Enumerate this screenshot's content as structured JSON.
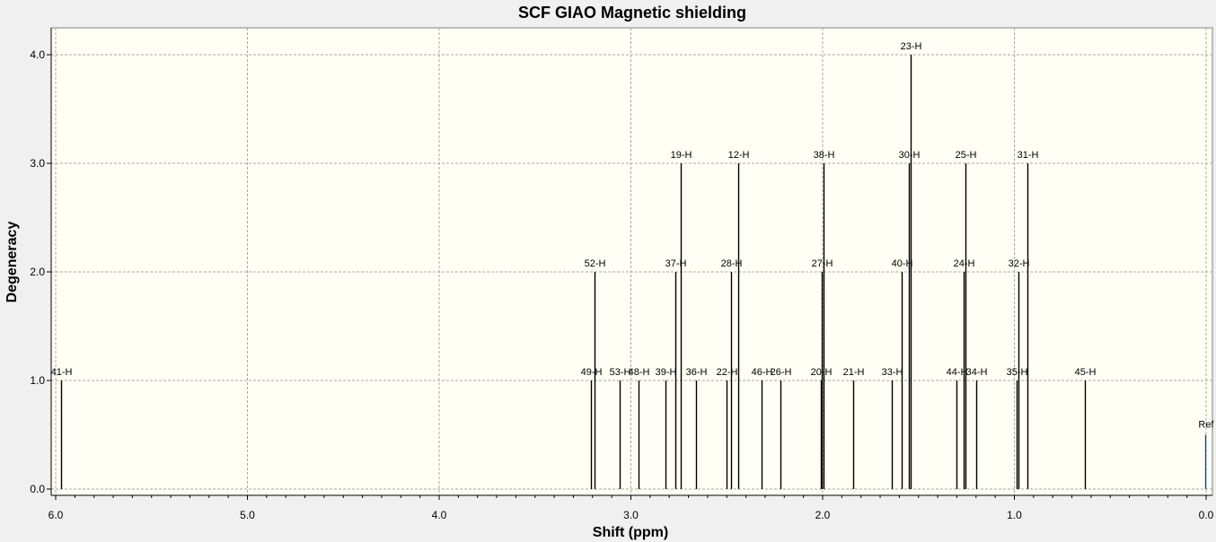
{
  "chart_data": {
    "type": "stick-spectrum",
    "title": "SCF GIAO Magnetic shielding",
    "xlabel": "Shift (ppm)",
    "ylabel": "Degeneracy",
    "xlim": [
      6.0,
      0.0
    ],
    "ylim": [
      0.0,
      4.2
    ],
    "x_reversed": true,
    "x_ticks": [
      "6.0",
      "5.0",
      "4.0",
      "3.0",
      "2.0",
      "1.0",
      "0.0"
    ],
    "y_ticks": [
      "0.0",
      "1.0",
      "2.0",
      "3.0",
      "4.0"
    ],
    "grid": true,
    "plot_background": "#fffff5",
    "peak_color": "#000000",
    "reference_color": "#1f3fa8",
    "peaks": [
      {
        "label": "41-H",
        "x": 5.97,
        "y": 1
      },
      {
        "label": "49-H",
        "x": 3.21,
        "y": 1
      },
      {
        "label": "52-H",
        "x": 3.19,
        "y": 2
      },
      {
        "label": "53-H",
        "x": 3.06,
        "y": 1
      },
      {
        "label": "48-H",
        "x": 2.96,
        "y": 1
      },
      {
        "label": "39-H",
        "x": 2.82,
        "y": 1
      },
      {
        "label": "37-H",
        "x": 2.77,
        "y": 2
      },
      {
        "label": "19-H",
        "x": 2.74,
        "y": 3
      },
      {
        "label": "36-H",
        "x": 2.66,
        "y": 1
      },
      {
        "label": "22-H",
        "x": 2.5,
        "y": 1
      },
      {
        "label": "28-H",
        "x": 2.48,
        "y": 2
      },
      {
        "label": "12-H",
        "x": 2.44,
        "y": 3
      },
      {
        "label": "46-H",
        "x": 2.32,
        "y": 1
      },
      {
        "label": "26-H",
        "x": 2.22,
        "y": 1
      },
      {
        "label": "20-H",
        "x": 2.01,
        "y": 1
      },
      {
        "label": "27-H",
        "x": 2.005,
        "y": 2
      },
      {
        "label": "38-H",
        "x": 1.995,
        "y": 3
      },
      {
        "label": "21-H",
        "x": 1.84,
        "y": 1
      },
      {
        "label": "33-H",
        "x": 1.64,
        "y": 1
      },
      {
        "label": "40-H",
        "x": 1.59,
        "y": 2
      },
      {
        "label": "30-H",
        "x": 1.55,
        "y": 3
      },
      {
        "label": "23-H",
        "x": 1.54,
        "y": 4
      },
      {
        "label": "44-H",
        "x": 1.3,
        "y": 1
      },
      {
        "label": "24-H",
        "x": 1.265,
        "y": 2
      },
      {
        "label": "25-H",
        "x": 1.255,
        "y": 3
      },
      {
        "label": "34-H",
        "x": 1.2,
        "y": 1
      },
      {
        "label": "35-H",
        "x": 0.99,
        "y": 1
      },
      {
        "label": "32-H",
        "x": 0.98,
        "y": 2
      },
      {
        "label": "31-H",
        "x": 0.93,
        "y": 3
      },
      {
        "label": "45-H",
        "x": 0.63,
        "y": 1
      }
    ],
    "reference": {
      "label": "Ref",
      "x": 0.0,
      "y": 0.5
    }
  }
}
